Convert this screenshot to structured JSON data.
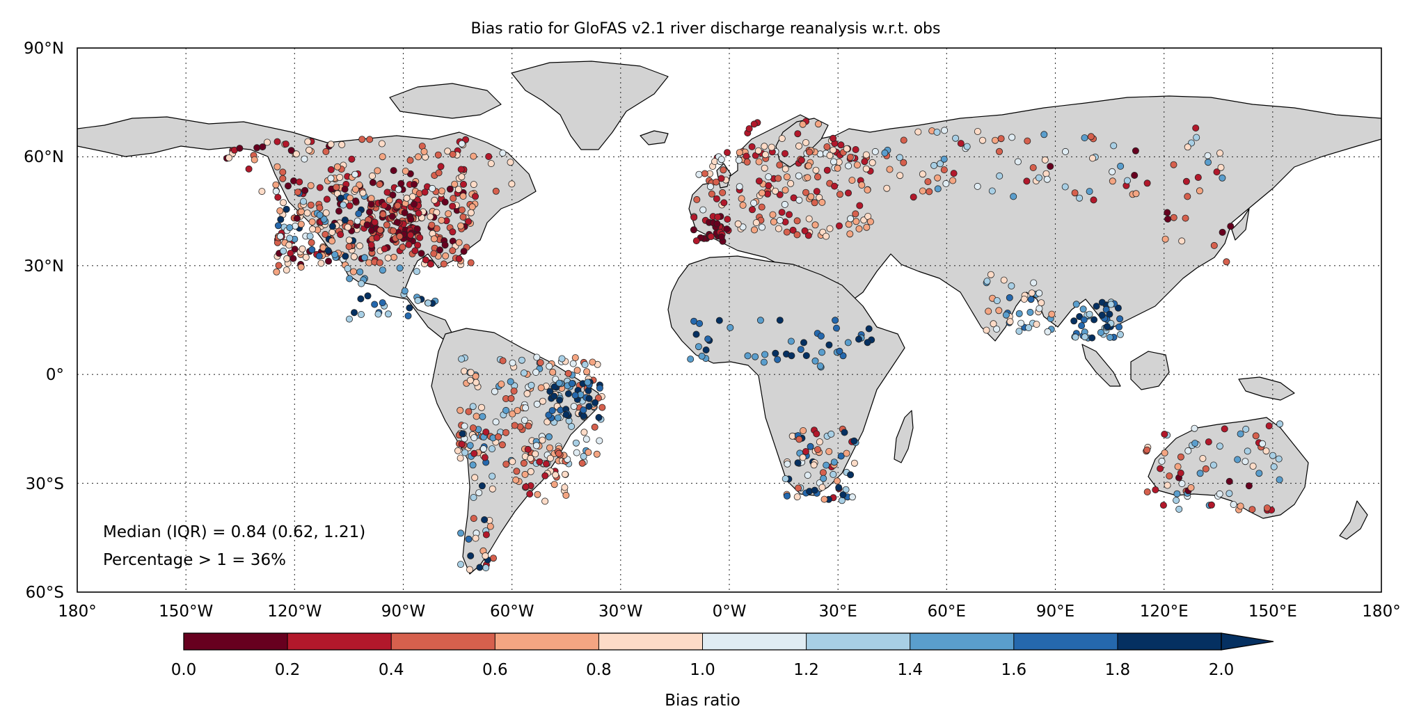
{
  "map": {
    "title": "Bias ratio for GloFAS v2.1 river discharge reanalysis w.r.t. obs",
    "projection": "equirectangular",
    "extent": {
      "lon": [
        -180,
        180
      ],
      "lat": [
        -60,
        90
      ]
    },
    "grid": true,
    "land_color": "#d3d3d3",
    "lat_ticks": [
      {
        "value": 90,
        "label": "90°N"
      },
      {
        "value": 60,
        "label": "60°N"
      },
      {
        "value": 30,
        "label": "30°N"
      },
      {
        "value": 0,
        "label": "0°"
      },
      {
        "value": -30,
        "label": "30°S"
      },
      {
        "value": -60,
        "label": "60°S"
      }
    ],
    "lon_ticks": [
      {
        "value": -180,
        "label": "180°"
      },
      {
        "value": -150,
        "label": "150°W"
      },
      {
        "value": -120,
        "label": "120°W"
      },
      {
        "value": -90,
        "label": "90°W"
      },
      {
        "value": -60,
        "label": "60°W"
      },
      {
        "value": -30,
        "label": "30°W"
      },
      {
        "value": 0,
        "label": "0°W"
      },
      {
        "value": 30,
        "label": "30°E"
      },
      {
        "value": 60,
        "label": "60°E"
      },
      {
        "value": 90,
        "label": "90°E"
      },
      {
        "value": 120,
        "label": "120°E"
      },
      {
        "value": 150,
        "label": "150°E"
      },
      {
        "value": 180,
        "label": "180°"
      }
    ],
    "stats": {
      "median_line": "Median (IQR) = 0.84 (0.62, 1.21)",
      "percentage_line": "Percentage > 1 = 36%"
    }
  },
  "colorbar": {
    "label": "Bias ratio",
    "range": [
      0.0,
      2.0
    ],
    "extend": "max",
    "tick_labels": [
      "0.0",
      "0.2",
      "0.4",
      "0.6",
      "0.8",
      "1.0",
      "1.2",
      "1.4",
      "1.6",
      "1.8",
      "2.0"
    ],
    "colors": [
      "#67001f",
      "#b2182b",
      "#d6604d",
      "#f4a582",
      "#fddbc7",
      "#e0ecf3",
      "#a8cfe5",
      "#5a9ecd",
      "#2568ad",
      "#053061",
      "#053061"
    ]
  }
}
